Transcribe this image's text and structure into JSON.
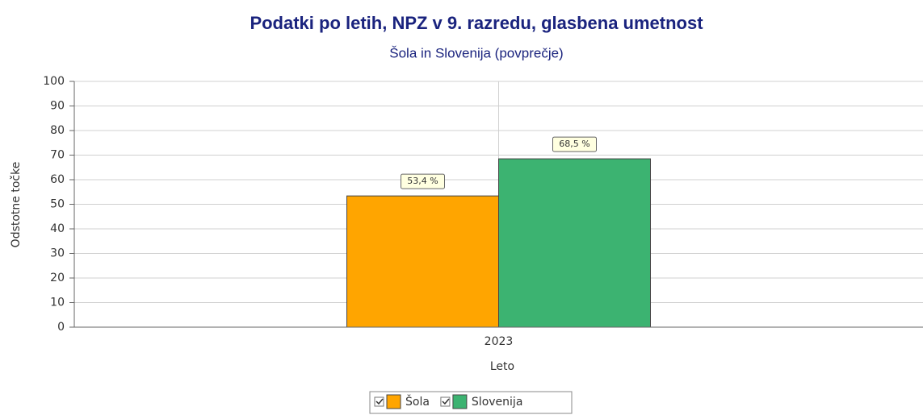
{
  "chart_data": {
    "type": "bar",
    "title": "Podatki po letih, NPZ v 9. razredu, glasbena umetnost",
    "subtitle": "Šola in Slovenija (povprečje)",
    "y_label": "Odstotne točke",
    "x_label": "Leto",
    "categories": [
      "2023"
    ],
    "series": [
      {
        "name": "Šola",
        "color": "#ffa500",
        "values": [
          53.4
        ],
        "value_labels": [
          "53,4 %"
        ]
      },
      {
        "name": "Slovenija",
        "color": "#3cb371",
        "values": [
          68.5
        ],
        "value_labels": [
          "68,5 %"
        ]
      }
    ],
    "ylim": [
      0,
      100
    ],
    "yticks": [
      0,
      10,
      20,
      30,
      40,
      50,
      60,
      70,
      80,
      90,
      100
    ],
    "grid": true,
    "legend": "bottom"
  }
}
